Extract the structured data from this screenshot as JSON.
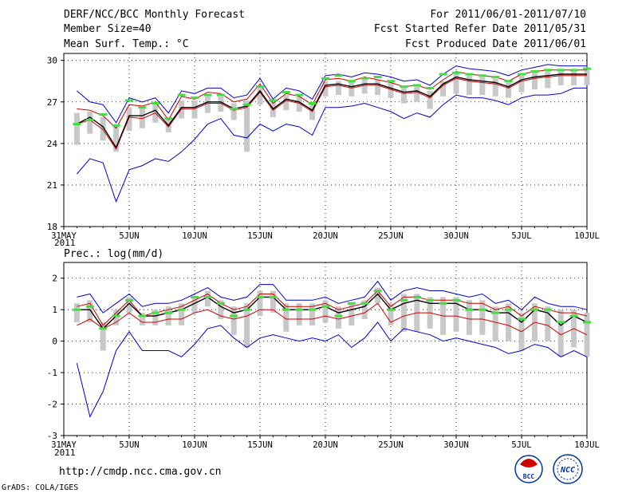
{
  "header": {
    "title": "DERF/NCC/BCC Monthly Forecast",
    "member_size": "Member Size=40",
    "period": "For 2011/06/01-2011/07/10",
    "started": "Fcst Started Refer Date 2011/05/31",
    "produced": "Fcst Produced Date 2011/06/01"
  },
  "footer": {
    "url": "http://cmdp.ncc.cma.gov.cn",
    "credit": "GrADS: COLA/IGES",
    "logo_bcc": "BCC",
    "logo_ncc": "NCC"
  },
  "colors": {
    "ensemble_bound": "#0000cc",
    "ensemble_mean": "#000000",
    "spread": "#cc0000",
    "median_marker": "#44dd44",
    "box": "#c8c8c8",
    "grid": "#000000"
  },
  "chart_data": [
    {
      "type": "line",
      "title": "Mean Surf. Temp.: °C",
      "x_ticks": [
        "31MAY",
        "5JUN",
        "10JUN",
        "15JUN",
        "20JUN",
        "25JUN",
        "30JUN",
        "5JUL",
        "10JUL"
      ],
      "x_tick_days": [
        0,
        5,
        10,
        15,
        20,
        25,
        30,
        35,
        40
      ],
      "x_sub_label": "2011",
      "xlim": [
        0,
        40
      ],
      "ylim": [
        18,
        30.5
      ],
      "y_ticks": [
        "18",
        "21",
        "24",
        "27",
        "30"
      ],
      "y_tick_values": [
        18,
        21,
        24,
        27,
        30
      ],
      "days": [
        1,
        2,
        3,
        4,
        5,
        6,
        7,
        8,
        9,
        10,
        11,
        12,
        13,
        14,
        15,
        16,
        17,
        18,
        19,
        20,
        21,
        22,
        23,
        24,
        25,
        26,
        27,
        28,
        29,
        30,
        31,
        32,
        33,
        34,
        35,
        36,
        37,
        38,
        39,
        40
      ],
      "series": [
        {
          "name": "max",
          "values": [
            27.8,
            27.0,
            26.8,
            25.5,
            27.3,
            27.0,
            27.3,
            26.2,
            27.8,
            27.6,
            28.0,
            28.0,
            27.3,
            27.5,
            28.7,
            27.2,
            28.0,
            27.8,
            27.2,
            28.9,
            29.0,
            28.8,
            29.1,
            29.0,
            28.8,
            28.5,
            28.6,
            28.2,
            29.0,
            29.6,
            29.4,
            29.3,
            29.2,
            28.9,
            29.3,
            29.5,
            29.7,
            29.6,
            29.6,
            29.6
          ]
        },
        {
          "name": "upper",
          "values": [
            26.5,
            26.4,
            26.0,
            25.1,
            26.8,
            26.7,
            27.0,
            25.7,
            27.4,
            27.2,
            27.7,
            27.6,
            27.0,
            27.2,
            28.3,
            26.9,
            27.6,
            27.4,
            26.8,
            28.6,
            28.7,
            28.5,
            28.8,
            28.6,
            28.4,
            28.1,
            28.2,
            27.9,
            28.6,
            29.2,
            29.0,
            28.9,
            28.8,
            28.5,
            29.0,
            29.2,
            29.3,
            29.3,
            29.3,
            29.3
          ]
        },
        {
          "name": "mean",
          "values": [
            25.4,
            25.9,
            25.2,
            23.7,
            26.0,
            26.0,
            26.4,
            25.3,
            26.6,
            26.6,
            27.0,
            27.0,
            26.5,
            26.7,
            27.8,
            26.5,
            27.2,
            27.0,
            26.4,
            28.2,
            28.3,
            28.1,
            28.3,
            28.3,
            28.0,
            27.7,
            27.8,
            27.4,
            28.3,
            28.8,
            28.6,
            28.5,
            28.4,
            28.1,
            28.6,
            28.8,
            28.9,
            29.0,
            29.0,
            29.0
          ]
        },
        {
          "name": "lower",
          "values": [
            25.4,
            25.7,
            25.0,
            23.6,
            25.9,
            25.8,
            26.2,
            25.2,
            26.5,
            26.5,
            26.9,
            26.9,
            26.4,
            26.6,
            27.7,
            26.4,
            27.1,
            26.9,
            26.3,
            28.1,
            28.2,
            28.0,
            28.2,
            28.2,
            27.9,
            27.6,
            27.7,
            27.3,
            28.2,
            28.7,
            28.5,
            28.4,
            28.3,
            28.0,
            28.5,
            28.7,
            28.8,
            28.9,
            28.9,
            28.9
          ]
        },
        {
          "name": "min",
          "values": [
            21.8,
            22.9,
            22.6,
            19.8,
            22.1,
            22.4,
            22.9,
            22.7,
            23.4,
            24.3,
            25.4,
            25.8,
            24.6,
            24.4,
            25.4,
            24.9,
            25.4,
            25.2,
            24.6,
            26.6,
            26.6,
            26.7,
            26.9,
            26.6,
            26.3,
            25.8,
            26.2,
            25.9,
            26.8,
            27.5,
            27.3,
            27.3,
            27.1,
            26.8,
            27.3,
            27.5,
            27.5,
            27.6,
            28.0,
            28.0
          ]
        },
        {
          "name": "box_top",
          "values": [
            26.2,
            26.3,
            25.9,
            25.2,
            26.6,
            26.6,
            26.8,
            25.9,
            27.1,
            27.1,
            27.4,
            27.4,
            26.9,
            27.1,
            28.0,
            27.0,
            27.5,
            27.4,
            26.9,
            28.5,
            28.5,
            28.5,
            28.6,
            28.6,
            28.4,
            28.0,
            28.1,
            27.8,
            28.5,
            29.0,
            28.9,
            28.8,
            28.7,
            28.4,
            28.9,
            29.1,
            29.2,
            29.2,
            29.2,
            29.3
          ]
        },
        {
          "name": "box_bottom",
          "values": [
            23.9,
            24.7,
            24.2,
            23.4,
            24.9,
            25.1,
            25.5,
            24.8,
            25.8,
            25.8,
            26.2,
            26.3,
            25.7,
            23.4,
            26.8,
            25.9,
            26.4,
            26.3,
            25.7,
            27.4,
            27.5,
            27.4,
            27.6,
            27.5,
            27.3,
            26.9,
            27.0,
            26.5,
            27.4,
            27.6,
            27.5,
            27.5,
            27.4,
            27.3,
            27.7,
            27.9,
            28.0,
            28.2,
            28.2,
            28.2
          ]
        },
        {
          "name": "median",
          "values": [
            25.4,
            25.7,
            26.1,
            25.3,
            27.1,
            26.6,
            26.9,
            25.8,
            27.5,
            27.3,
            27.5,
            27.5,
            26.5,
            26.8,
            28.1,
            27.1,
            27.7,
            27.5,
            26.9,
            28.7,
            28.9,
            28.5,
            28.7,
            28.8,
            28.5,
            28.1,
            28.2,
            28.0,
            29.0,
            29.1,
            29.0,
            28.9,
            28.8,
            28.5,
            29.0,
            29.2,
            29.3,
            29.3,
            29.3,
            29.4
          ]
        }
      ]
    },
    {
      "type": "line",
      "title": "Prec.: log(mm/d)",
      "x_ticks": [
        "31MAY",
        "5JUN",
        "10JUN",
        "15JUN",
        "20JUN",
        "25JUN",
        "30JUN",
        "5JUL",
        "10JUL"
      ],
      "x_tick_days": [
        0,
        5,
        10,
        15,
        20,
        25,
        30,
        35,
        40
      ],
      "x_sub_label": "2011",
      "xlim": [
        0,
        40
      ],
      "ylim": [
        -3,
        2.5
      ],
      "y_ticks": [
        "-3",
        "-2",
        "-1",
        "0",
        "1",
        "2"
      ],
      "y_tick_values": [
        -3,
        -2,
        -1,
        0,
        1,
        2
      ],
      "days": [
        1,
        2,
        3,
        4,
        5,
        6,
        7,
        8,
        9,
        10,
        11,
        12,
        13,
        14,
        15,
        16,
        17,
        18,
        19,
        20,
        21,
        22,
        23,
        24,
        25,
        26,
        27,
        28,
        29,
        30,
        31,
        32,
        33,
        34,
        35,
        36,
        37,
        38,
        39,
        40
      ],
      "series": [
        {
          "name": "max",
          "values": [
            1.4,
            1.5,
            0.9,
            1.2,
            1.5,
            1.1,
            1.2,
            1.2,
            1.3,
            1.5,
            1.7,
            1.4,
            1.3,
            1.4,
            1.8,
            1.8,
            1.3,
            1.3,
            1.3,
            1.4,
            1.2,
            1.3,
            1.4,
            1.9,
            1.3,
            1.6,
            1.7,
            1.6,
            1.6,
            1.5,
            1.4,
            1.5,
            1.2,
            1.3,
            1.0,
            1.4,
            1.2,
            1.1,
            1.1,
            1.0
          ]
        },
        {
          "name": "upper",
          "values": [
            1.1,
            1.2,
            0.5,
            0.9,
            1.3,
            0.8,
            0.9,
            1.0,
            1.1,
            1.3,
            1.5,
            1.2,
            1.0,
            1.1,
            1.5,
            1.5,
            1.1,
            1.1,
            1.1,
            1.2,
            1.0,
            1.1,
            1.2,
            1.6,
            1.1,
            1.4,
            1.4,
            1.3,
            1.3,
            1.3,
            1.2,
            1.2,
            1.0,
            1.1,
            0.8,
            1.1,
            1.0,
            0.9,
            0.9,
            0.8
          ]
        },
        {
          "name": "mean",
          "values": [
            1.0,
            1.0,
            0.4,
            0.8,
            1.2,
            0.8,
            0.8,
            0.9,
            1.0,
            1.2,
            1.4,
            1.1,
            0.9,
            1.0,
            1.4,
            1.4,
            1.0,
            1.0,
            1.0,
            1.1,
            0.9,
            1.0,
            1.1,
            1.5,
            1.0,
            1.2,
            1.3,
            1.2,
            1.2,
            1.2,
            1.0,
            1.0,
            0.9,
            0.9,
            0.6,
            1.0,
            0.9,
            0.5,
            0.8,
            0.6
          ]
        },
        {
          "name": "lower",
          "values": [
            0.5,
            0.7,
            0.4,
            0.6,
            0.9,
            0.6,
            0.6,
            0.7,
            0.7,
            0.9,
            1.0,
            0.8,
            0.7,
            0.8,
            1.0,
            1.0,
            0.7,
            0.7,
            0.7,
            0.8,
            0.7,
            0.8,
            0.9,
            1.2,
            0.6,
            0.8,
            0.9,
            0.9,
            0.8,
            0.8,
            0.7,
            0.7,
            0.6,
            0.5,
            0.3,
            0.6,
            0.5,
            0.2,
            0.4,
            0.2
          ]
        },
        {
          "name": "min",
          "values": [
            -0.7,
            -2.4,
            -1.6,
            -0.3,
            0.3,
            -0.3,
            -0.3,
            -0.3,
            -0.5,
            -0.1,
            0.4,
            0.5,
            0.1,
            -0.2,
            0.1,
            0.2,
            0.1,
            0.0,
            0.1,
            0.0,
            0.2,
            -0.2,
            0.1,
            0.6,
            0.0,
            0.4,
            0.3,
            0.2,
            0.0,
            0.1,
            0.0,
            -0.1,
            -0.2,
            -0.4,
            -0.3,
            -0.1,
            -0.2,
            -0.5,
            -0.3,
            -0.5
          ]
        },
        {
          "name": "box_top",
          "values": [
            1.2,
            1.3,
            0.6,
            1.0,
            1.4,
            0.9,
            1.0,
            1.1,
            1.2,
            1.4,
            1.6,
            1.3,
            1.1,
            1.2,
            1.6,
            1.6,
            1.2,
            1.2,
            1.2,
            1.3,
            1.1,
            1.2,
            1.3,
            1.7,
            1.2,
            1.5,
            1.5,
            1.4,
            1.4,
            1.4,
            1.3,
            1.3,
            1.1,
            1.2,
            0.9,
            1.2,
            1.1,
            1.0,
            1.0,
            0.9
          ]
        },
        {
          "name": "box_bottom",
          "values": [
            0.6,
            0.6,
            -0.3,
            0.5,
            0.9,
            0.5,
            0.5,
            0.5,
            0.5,
            0.9,
            1.1,
            0.7,
            0.2,
            -0.2,
            0.8,
            0.9,
            0.3,
            0.5,
            0.5,
            0.6,
            0.4,
            0.5,
            0.7,
            1.2,
            0.5,
            0.3,
            0.3,
            0.4,
            0.2,
            0.3,
            0.2,
            0.2,
            0.0,
            0.0,
            -0.3,
            0.0,
            0.0,
            -0.5,
            -0.2,
            -0.5
          ]
        },
        {
          "name": "median",
          "values": [
            1.0,
            1.1,
            0.4,
            0.8,
            1.3,
            0.8,
            0.9,
            0.9,
            1.0,
            1.4,
            1.4,
            1.2,
            0.8,
            1.0,
            1.4,
            1.4,
            1.0,
            1.0,
            1.0,
            1.1,
            0.8,
            1.2,
            1.2,
            1.6,
            1.0,
            1.3,
            1.4,
            1.3,
            1.2,
            1.3,
            1.0,
            1.0,
            0.9,
            1.0,
            0.7,
            1.0,
            1.0,
            0.6,
            0.8,
            0.6
          ]
        }
      ]
    }
  ]
}
